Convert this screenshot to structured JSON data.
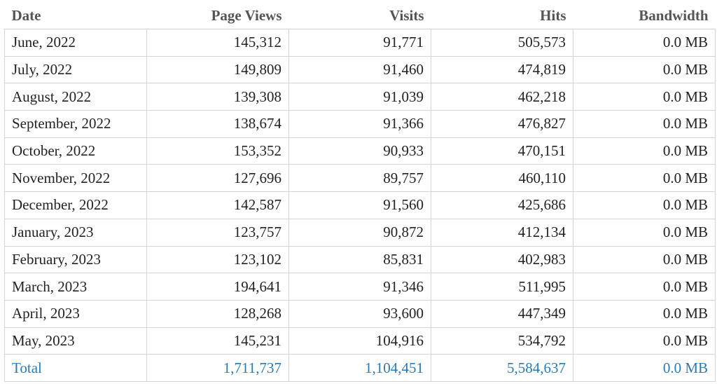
{
  "headers": {
    "date": "Date",
    "page_views": "Page Views",
    "visits": "Visits",
    "hits": "Hits",
    "bandwidth": "Bandwidth"
  },
  "rows": [
    {
      "date": "June, 2022",
      "page_views": "145,312",
      "visits": "91,771",
      "hits": "505,573",
      "bandwidth": "0.0 MB"
    },
    {
      "date": "July, 2022",
      "page_views": "149,809",
      "visits": "91,460",
      "hits": "474,819",
      "bandwidth": "0.0 MB"
    },
    {
      "date": "August, 2022",
      "page_views": "139,308",
      "visits": "91,039",
      "hits": "462,218",
      "bandwidth": "0.0 MB"
    },
    {
      "date": "September, 2022",
      "page_views": "138,674",
      "visits": "91,366",
      "hits": "476,827",
      "bandwidth": "0.0 MB"
    },
    {
      "date": "October, 2022",
      "page_views": "153,352",
      "visits": "90,933",
      "hits": "470,151",
      "bandwidth": "0.0 MB"
    },
    {
      "date": "November, 2022",
      "page_views": "127,696",
      "visits": "89,757",
      "hits": "460,110",
      "bandwidth": "0.0 MB"
    },
    {
      "date": "December, 2022",
      "page_views": "142,587",
      "visits": "91,560",
      "hits": "425,686",
      "bandwidth": "0.0 MB"
    },
    {
      "date": "January, 2023",
      "page_views": "123,757",
      "visits": "90,872",
      "hits": "412,134",
      "bandwidth": "0.0 MB"
    },
    {
      "date": "February, 2023",
      "page_views": "123,102",
      "visits": "85,831",
      "hits": "402,983",
      "bandwidth": "0.0 MB"
    },
    {
      "date": "March, 2023",
      "page_views": "194,641",
      "visits": "91,346",
      "hits": "511,995",
      "bandwidth": "0.0 MB"
    },
    {
      "date": "April, 2023",
      "page_views": "128,268",
      "visits": "93,600",
      "hits": "447,349",
      "bandwidth": "0.0 MB"
    },
    {
      "date": "May, 2023",
      "page_views": "145,231",
      "visits": "104,916",
      "hits": "534,792",
      "bandwidth": "0.0 MB"
    }
  ],
  "total": {
    "date": "Total",
    "page_views": "1,711,737",
    "visits": "1,104,451",
    "hits": "5,584,637",
    "bandwidth": "0.0 MB"
  },
  "colors": {
    "header_text": "#555555",
    "body_text": "#222222",
    "total_text": "#2a7ab5",
    "border": "#d4d4d4"
  }
}
